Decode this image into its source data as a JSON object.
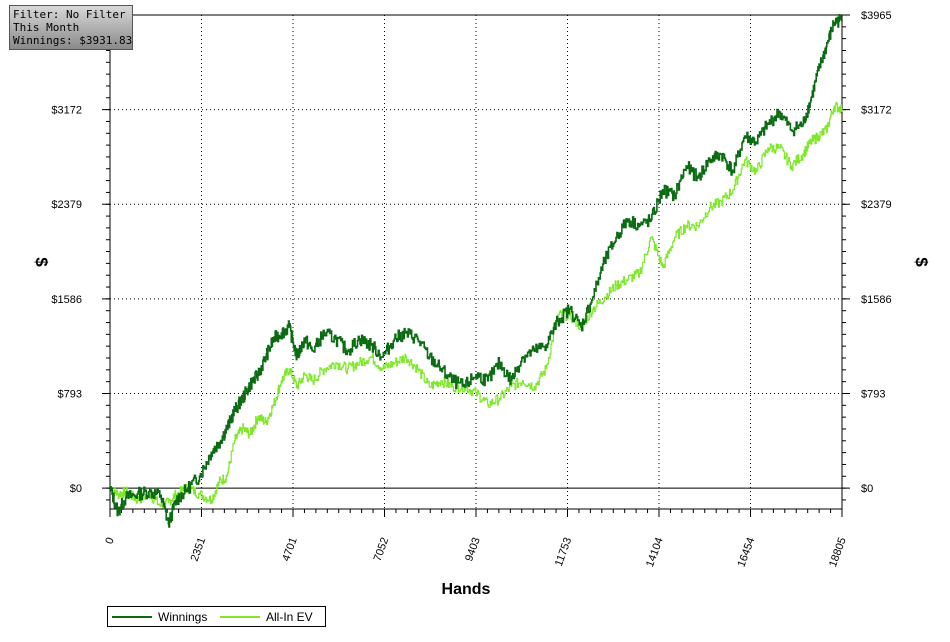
{
  "filter_panel": {
    "line1": "Filter: No Filter",
    "line2": "This Month",
    "line3": "Winnings: $3931.83"
  },
  "colors": {
    "winnings": "#0b6b12",
    "allin_ev": "#7fe82a",
    "grid": "#000000",
    "background": "#ffffff"
  },
  "chart_data": {
    "type": "line",
    "xlabel": "Hands",
    "ylabel": "$",
    "xlim": [
      0,
      18805
    ],
    "ylim": [
      -175,
      3965
    ],
    "x_ticks": [
      "0",
      "2351",
      "4701",
      "7052",
      "9403",
      "11753",
      "14104",
      "16454",
      "18805"
    ],
    "y_ticks_left": [
      "$3172",
      "$2379",
      "$1586",
      "$793",
      "$0"
    ],
    "y_ticks_right": [
      "$3965",
      "$3172",
      "$2379",
      "$1586",
      "$793",
      "$0"
    ],
    "y_tick_values": [
      3965,
      3172,
      2379,
      1586,
      793,
      0
    ],
    "grid": true,
    "legend_position": "bottom-left",
    "series": [
      {
        "name": "Winnings",
        "x": [
          0,
          200,
          400,
          700,
          1000,
          1300,
          1500,
          1700,
          2000,
          2300,
          2600,
          2800,
          3000,
          3200,
          3400,
          3600,
          3800,
          4000,
          4200,
          4400,
          4600,
          4800,
          5000,
          5200,
          5500,
          5800,
          6100,
          6400,
          6700,
          7000,
          7300,
          7600,
          7900,
          8200,
          8500,
          8800,
          9100,
          9400,
          9700,
          10000,
          10300,
          10600,
          10900,
          11200,
          11500,
          11800,
          12100,
          12400,
          12700,
          13000,
          13300,
          13600,
          13900,
          14200,
          14500,
          14800,
          15100,
          15400,
          15700,
          16000,
          16300,
          16600,
          16900,
          17200,
          17500,
          17800,
          18000,
          18200,
          18400,
          18600,
          18805
        ],
        "values": [
          0,
          -200,
          -80,
          -50,
          -30,
          -60,
          -300,
          -100,
          0,
          100,
          300,
          380,
          500,
          650,
          750,
          870,
          950,
          1100,
          1250,
          1300,
          1350,
          1100,
          1250,
          1150,
          1300,
          1250,
          1150,
          1250,
          1200,
          1100,
          1250,
          1300,
          1250,
          1100,
          1000,
          900,
          850,
          950,
          900,
          1050,
          900,
          1100,
          1150,
          1200,
          1400,
          1500,
          1350,
          1600,
          1900,
          2100,
          2250,
          2200,
          2250,
          2500,
          2450,
          2700,
          2600,
          2750,
          2800,
          2650,
          2950,
          2900,
          3050,
          3150,
          3000,
          3050,
          3250,
          3500,
          3700,
          3900,
          3931.83
        ]
      },
      {
        "name": "All-In EV",
        "x": [
          0,
          200,
          400,
          700,
          1000,
          1300,
          1500,
          1700,
          2000,
          2300,
          2600,
          2800,
          3000,
          3200,
          3400,
          3600,
          3800,
          4000,
          4200,
          4400,
          4600,
          4800,
          5000,
          5200,
          5500,
          5800,
          6100,
          6400,
          6700,
          7000,
          7300,
          7600,
          7900,
          8200,
          8500,
          8800,
          9100,
          9400,
          9700,
          10000,
          10300,
          10600,
          10900,
          11200,
          11500,
          11800,
          12100,
          12400,
          12700,
          13000,
          13300,
          13600,
          13900,
          14200,
          14500,
          14800,
          15100,
          15400,
          15700,
          16000,
          16300,
          16600,
          16900,
          17200,
          17500,
          17800,
          18000,
          18200,
          18400,
          18600,
          18805
        ],
        "values": [
          0,
          -50,
          -30,
          -100,
          -50,
          -150,
          -120,
          -50,
          0,
          -50,
          -100,
          50,
          100,
          400,
          500,
          450,
          600,
          550,
          700,
          900,
          1000,
          850,
          950,
          900,
          1000,
          1050,
          1000,
          1050,
          1100,
          1000,
          1050,
          1100,
          1000,
          850,
          900,
          850,
          850,
          800,
          700,
          750,
          850,
          900,
          850,
          1000,
          1450,
          1450,
          1350,
          1500,
          1600,
          1700,
          1750,
          1800,
          2100,
          1850,
          2100,
          2200,
          2200,
          2350,
          2400,
          2500,
          2750,
          2650,
          2850,
          2850,
          2700,
          2800,
          2900,
          2950,
          3000,
          3200,
          3180
        ]
      }
    ]
  },
  "legend": {
    "winnings_label": "Winnings",
    "allin_label": "All-In EV"
  }
}
